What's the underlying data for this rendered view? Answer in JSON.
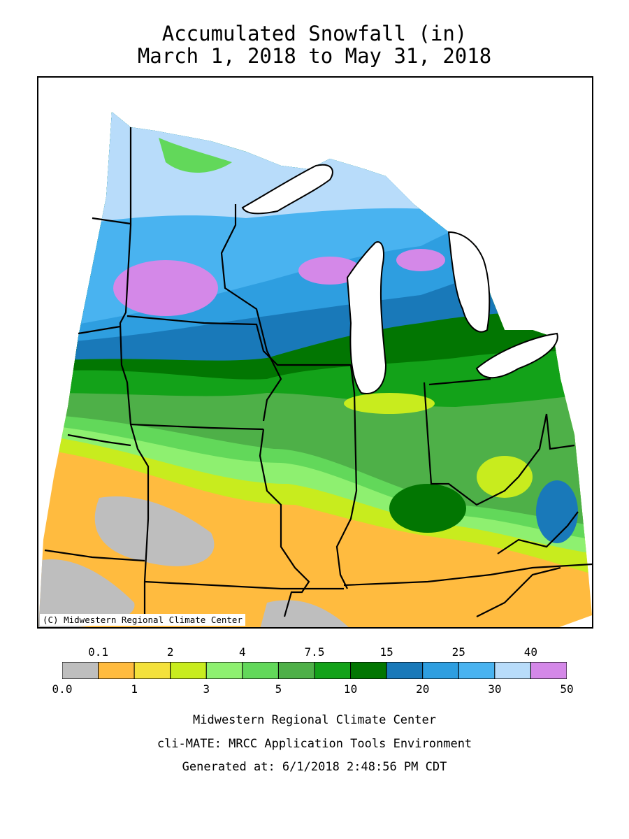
{
  "title": "Accumulated Snowfall (in)",
  "subtitle": "March 1, 2018 to May 31, 2018",
  "copyright": "(C) Midwestern Regional Climate Center",
  "legend": {
    "bins": [
      {
        "color": "#bebebe"
      },
      {
        "color": "#ffbb3f"
      },
      {
        "color": "#f4e13b"
      },
      {
        "color": "#c8ec1e"
      },
      {
        "color": "#8ef070"
      },
      {
        "color": "#62d85a"
      },
      {
        "color": "#4eb048"
      },
      {
        "color": "#13a219"
      },
      {
        "color": "#027602"
      },
      {
        "color": "#1979b9"
      },
      {
        "color": "#2e9ee0"
      },
      {
        "color": "#49b3f0"
      },
      {
        "color": "#b8dcfa"
      },
      {
        "color": "#d488e8"
      }
    ],
    "top_labels": [
      "0.1",
      "2",
      "4",
      "7.5",
      "15",
      "25",
      "40"
    ],
    "bottom_labels": [
      "0.0",
      "1",
      "3",
      "5",
      "10",
      "20",
      "30",
      "50"
    ]
  },
  "footer": {
    "line1": "Midwestern Regional Climate Center",
    "line2": "cli-MATE: MRCC Application Tools Environment",
    "line3": "Generated at: 6/1/2018 2:48:56 PM CDT"
  }
}
